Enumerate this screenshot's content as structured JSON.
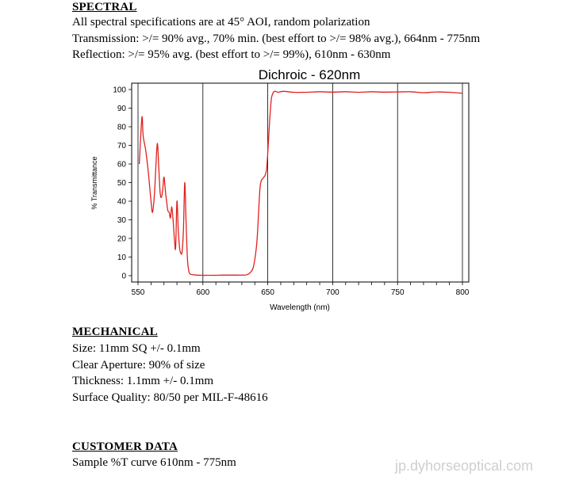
{
  "spectral": {
    "title": "SPECTRAL",
    "lines": [
      "All spectral specifications are at 45° AOI, random polarization",
      "Transmission:  >/= 90% avg., 70% min. (best effort to >/= 98% avg.), 664nm - 775nm",
      "Reflection:  >/= 95% avg. (best effort to >/= 99%), 610nm - 630nm"
    ]
  },
  "chart_data": {
    "type": "line",
    "title": "Dichroic - 620nm",
    "xlabel": "Wavelength (nm)",
    "ylabel": "% Transmittance",
    "xlim": [
      550,
      800
    ],
    "ylim": [
      0,
      100
    ],
    "xticks": [
      "550",
      "600",
      "650",
      "700",
      "750",
      "800"
    ],
    "yticks": [
      "0",
      "10",
      "20",
      "30",
      "40",
      "50",
      "60",
      "70",
      "80",
      "90",
      "100"
    ],
    "grid": true,
    "line_color": "#e0221f",
    "series": [
      {
        "x": [
          551,
          553,
          554,
          556,
          558,
          560,
          561,
          562,
          563,
          564,
          565,
          566,
          567,
          568,
          569,
          570,
          571,
          572,
          573,
          574,
          575,
          576,
          577,
          578,
          579,
          580,
          581,
          582,
          583,
          584,
          585,
          586,
          587,
          588,
          589,
          590,
          592,
          595,
          600,
          605,
          610,
          615,
          620,
          625,
          630,
          634,
          637,
          639,
          641,
          642,
          643,
          644,
          645,
          646,
          647,
          648,
          649,
          650,
          651,
          652,
          653,
          655,
          658,
          662,
          670,
          680,
          690,
          700,
          710,
          720,
          730,
          740,
          750,
          760,
          770,
          780,
          790,
          800
        ],
        "y": [
          60,
          85,
          75,
          67,
          55,
          40,
          34,
          38,
          48,
          62,
          71,
          58,
          45,
          42,
          46,
          53,
          46,
          40,
          35,
          34,
          31,
          37,
          30,
          20,
          15,
          40,
          25,
          15,
          12,
          13,
          25,
          50,
          30,
          10,
          3,
          1,
          0.5,
          0.3,
          0.2,
          0.2,
          0.2,
          0.3,
          0.3,
          0.3,
          0.3,
          0.5,
          2,
          5,
          14,
          22,
          35,
          47,
          51,
          52,
          53,
          54,
          57,
          66,
          78,
          89,
          96,
          99,
          98.5,
          99,
          98.5,
          98.5,
          98.8,
          98.6,
          98.8,
          98.5,
          98.8,
          98.6,
          98.7,
          98.8,
          98.3,
          98.7,
          98.5,
          98
        ]
      }
    ]
  },
  "mechanical": {
    "title": "MECHANICAL",
    "lines": [
      "Size: 11mm SQ +/- 0.1mm",
      "Clear Aperture:  90% of size",
      "Thickness: 1.1mm +/- 0.1mm",
      "Surface Quality: 80/50 per MIL-F-48616"
    ]
  },
  "customer": {
    "title": "CUSTOMER DATA",
    "lines": [
      "Sample %T curve 610nm - 775nm"
    ]
  },
  "watermark": "jp.dyhorseoptical.com"
}
